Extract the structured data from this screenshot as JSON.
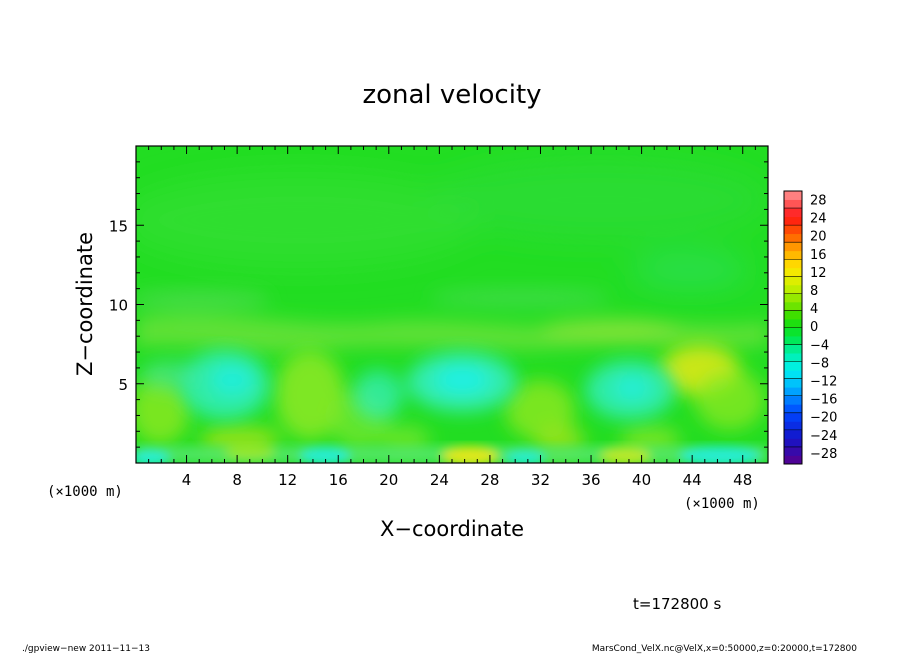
{
  "chart_data": {
    "type": "heatmap",
    "title": "zonal velocity",
    "xlabel": "X−coordinate",
    "ylabel": "Z−coordinate",
    "x_unit_left": "(×1000 m)",
    "x_unit_right": "(×1000 m)",
    "xlim": [
      0,
      50
    ],
    "ylim": [
      0,
      20
    ],
    "x_ticks": [
      4,
      8,
      12,
      16,
      20,
      24,
      28,
      32,
      36,
      40,
      44,
      48
    ],
    "y_ticks": [
      5,
      10,
      15
    ],
    "colorbar": {
      "levels": [
        -32,
        -30,
        -28,
        -26,
        -24,
        -22,
        -20,
        -18,
        -16,
        -14,
        -12,
        -10,
        -8,
        -6,
        -4,
        -2,
        0,
        2,
        4,
        6,
        8,
        10,
        12,
        14,
        16,
        18,
        20,
        22,
        24,
        26,
        28,
        30,
        32
      ],
      "labels": [
        "28",
        "24",
        "20",
        "16",
        "12",
        "8",
        "4",
        "0",
        "−4",
        "−8",
        "−12",
        "−16",
        "−20",
        "−24",
        "−28"
      ],
      "label_values": [
        28,
        24,
        20,
        16,
        12,
        8,
        4,
        0,
        -4,
        -8,
        -12,
        -16,
        -20,
        -24,
        -28
      ]
    },
    "colors": {
      "background_green": "#22dd22",
      "upper_green": "#33dd33",
      "yellow_green": "#88e822",
      "light_green": "#66e84a",
      "cyan": "#22eedd",
      "cyan_light": "#44f0c0",
      "yellow": "#e8e81a"
    }
  },
  "annotations": {
    "time": "t=172800 s",
    "footer_left": "./gpview−new   2011−11−13",
    "footer_right": "MarsCond_VelX.nc@VelX,x=0:50000,z=0:20000,t=172800"
  }
}
